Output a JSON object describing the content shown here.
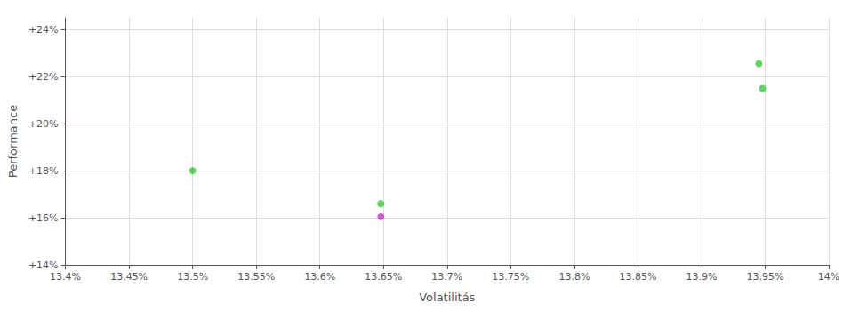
{
  "chart_data": {
    "type": "scatter",
    "xlabel": "Volatilitás",
    "ylabel": "Performance",
    "x": [
      13.5,
      13.648,
      13.648,
      13.945,
      13.948
    ],
    "values": [
      18.0,
      16.6,
      16.05,
      22.55,
      21.5
    ],
    "colors": [
      "#33cc33",
      "#33cc33",
      "#cc33cc",
      "#33cc33",
      "#33cc33"
    ],
    "xlim": [
      13.4,
      14.0
    ],
    "ylim": [
      14.0,
      24.5
    ],
    "xticks": [
      {
        "value": 13.4,
        "label": "13.4%"
      },
      {
        "value": 13.45,
        "label": "13.45%"
      },
      {
        "value": 13.5,
        "label": "13.5%"
      },
      {
        "value": 13.55,
        "label": "13.55%"
      },
      {
        "value": 13.6,
        "label": "13.6%"
      },
      {
        "value": 13.65,
        "label": "13.65%"
      },
      {
        "value": 13.7,
        "label": "13.7%"
      },
      {
        "value": 13.75,
        "label": "13.75%"
      },
      {
        "value": 13.8,
        "label": "13.8%"
      },
      {
        "value": 13.85,
        "label": "13.85%"
      },
      {
        "value": 13.9,
        "label": "13.9%"
      },
      {
        "value": 13.95,
        "label": "13.95%"
      },
      {
        "value": 14.0,
        "label": "14%"
      }
    ],
    "yticks": [
      {
        "value": 14.0,
        "label": "+14%"
      },
      {
        "value": 16.0,
        "label": "+16%"
      },
      {
        "value": 18.0,
        "label": "+18%"
      },
      {
        "value": 20.0,
        "label": "+20%"
      },
      {
        "value": 22.0,
        "label": "+22%"
      },
      {
        "value": 24.0,
        "label": "+24%"
      }
    ],
    "grid": true
  }
}
